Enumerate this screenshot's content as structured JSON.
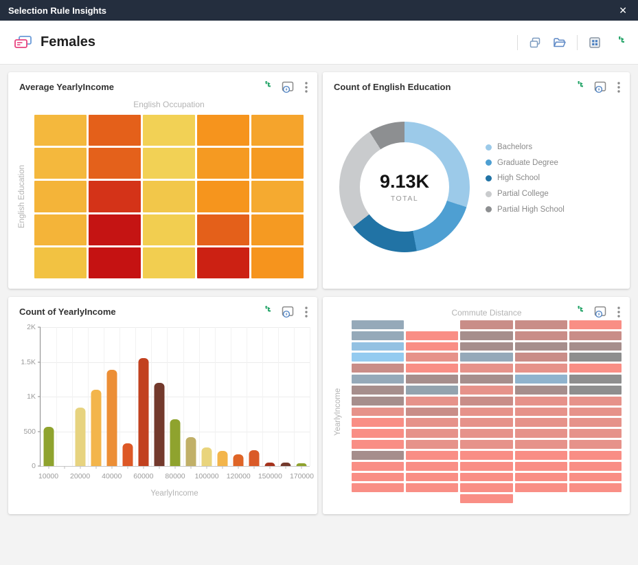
{
  "titlebar": {
    "title": "Selection Rule Insights",
    "close_glyph": "✕"
  },
  "header": {
    "title": "Females",
    "actions": [
      "duplicate",
      "open-folder",
      "card-browser",
      "refresh"
    ]
  },
  "panels": [
    {
      "title": "Average YearlyIncome"
    },
    {
      "title": "Count of English Education"
    },
    {
      "title": "Count of YearlyIncome"
    },
    {
      "title": ""
    }
  ],
  "colors": {
    "accent_green": "#21a366",
    "accent_blue": "#4a7fc1",
    "titlebar_bg": "#242e3e"
  },
  "chart_data": [
    {
      "type": "heatmap",
      "title": "English Occupation",
      "title_position": "top",
      "ylabel": "English Education",
      "rows": 5,
      "cols": 5,
      "cell_colors": [
        [
          "#f4b83d",
          "#e4601a",
          "#f2d155",
          "#f6941d",
          "#f5a42c"
        ],
        [
          "#f4b83d",
          "#e4611b",
          "#f2d155",
          "#f59a22",
          "#f59a22"
        ],
        [
          "#f4b439",
          "#d43318",
          "#f2c74a",
          "#f6951d",
          "#f5aa30"
        ],
        [
          "#f4b439",
          "#c51413",
          "#f2ce50",
          "#e4601a",
          "#f59a22"
        ],
        [
          "#f2c242",
          "#c51212",
          "#f2ce50",
          "#cc2113",
          "#f6941d"
        ]
      ]
    },
    {
      "type": "pie",
      "subtype": "donut",
      "center_value": "9.13K",
      "center_label": "TOTAL",
      "legend_position": "right",
      "slices": [
        {
          "label": "Bachelors",
          "pct": 30,
          "color": "#9ccae9"
        },
        {
          "label": "Graduate Degree",
          "pct": 17,
          "color": "#4e9fd2"
        },
        {
          "label": "High School",
          "pct": 17.5,
          "color": "#2173a5"
        },
        {
          "label": "Partial College",
          "pct": 26.5,
          "color": "#c9cbcd"
        },
        {
          "label": "Partial High School",
          "pct": 9,
          "color": "#8d8f91"
        }
      ]
    },
    {
      "type": "bar",
      "xlabel": "YearlyIncome",
      "ylim": [
        0,
        2000
      ],
      "yticks": [
        "2K",
        "1.5K",
        "1K",
        "500",
        "0"
      ],
      "x_labels": [
        "10000",
        "",
        "20000",
        "",
        "40000",
        "",
        "60000",
        "",
        "80000",
        "",
        "100000",
        "",
        "120000",
        "",
        "150000",
        "",
        "170000"
      ],
      "values": [
        560,
        0,
        840,
        1100,
        1390,
        330,
        1550,
        1200,
        670,
        415,
        265,
        220,
        170,
        230,
        45,
        45,
        40
      ],
      "colors": [
        "#8fa32e",
        null,
        "#e7d37f",
        "#f3b54b",
        "#ec8e35",
        "#dd5826",
        "#c2411f",
        "#73392c",
        "#8fa32e",
        "#c1b068",
        "#e9d47c",
        "#f3b54b",
        "#df6527",
        "#da5a28",
        "#a5321c",
        "#73392c",
        "#8fa32e"
      ],
      "grid": true
    },
    {
      "type": "heatmap",
      "subtype": "mosaic",
      "title": "Commute Distance",
      "title_position": "top",
      "ylabel": "YearlyIncome",
      "rows": 17,
      "cols": 5,
      "palette": {
        "SL": "#95a9b9",
        "SG": "#93a3ae",
        "LB": "#93c1e2",
        "PB": "#94cbf0",
        "LS": "#90b3cd",
        "SA": "#f98e85",
        "RO": "#e6928a",
        "MV": "#c98d88",
        "GM": "#a68e8c",
        "GR": "#8e8e8e"
      },
      "grid": [
        [
          "SL",
          null,
          "MV",
          "MV",
          "SA"
        ],
        [
          "SL",
          "SA",
          "GM",
          "MV",
          "MV"
        ],
        [
          "LB",
          "SA",
          "GM",
          "GM",
          "GM"
        ],
        [
          "PB",
          "RO",
          "SL",
          "MV",
          "GR"
        ],
        [
          "MV",
          "SA",
          "RO",
          "RO",
          "SA"
        ],
        [
          "SL",
          "GM",
          "GM",
          "LS",
          "GR"
        ],
        [
          "GM",
          "SG",
          "RO",
          "GM",
          "GR"
        ],
        [
          "GM",
          "RO",
          "MV",
          "RO",
          "RO"
        ],
        [
          "RO",
          "MV",
          "RO",
          "RO",
          "RO"
        ],
        [
          "SA",
          "RO",
          "RO",
          "RO",
          "RO"
        ],
        [
          "SA",
          "RO",
          "RO",
          "RO",
          "RO"
        ],
        [
          "SA",
          "RO",
          "RO",
          "RO",
          "RO"
        ],
        [
          "GM",
          "SA",
          "SA",
          "SA",
          "SA"
        ],
        [
          "SA",
          "SA",
          "SA",
          "SA",
          "SA"
        ],
        [
          "SA",
          "SA",
          "SA",
          "SA",
          "SA"
        ],
        [
          "SA",
          "SA",
          "SA",
          "SA",
          "SA"
        ],
        [
          null,
          null,
          "SA",
          null,
          null
        ]
      ]
    }
  ]
}
